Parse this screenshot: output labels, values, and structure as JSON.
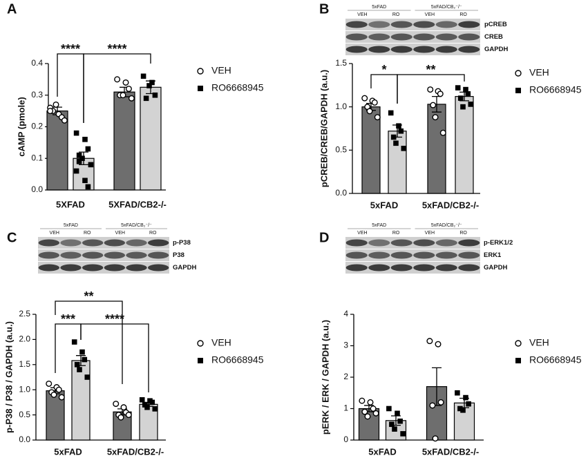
{
  "chart_data": [
    {
      "type": "bar",
      "panel": "A",
      "ylabel": "cAMP (pmole)",
      "categories": [
        "5XFAD",
        "5XFAD/CB2-/-"
      ],
      "ylim": [
        0,
        0.4
      ],
      "yticks": [
        {
          "value": 0,
          "label": "0.0"
        },
        0.1,
        0.2,
        0.3,
        0.4
      ],
      "series": [
        {
          "name": "VEH",
          "color": "#6e6e6e",
          "marker": "circle",
          "values": [
            0.25,
            0.31
          ],
          "errors": [
            0.012,
            0.015
          ],
          "points": [
            [
              0.26,
              0.24,
              0.23,
              0.25,
              0.27,
              0.22,
              0.25
            ],
            [
              0.35,
              0.34,
              0.32,
              0.3,
              0.3,
              0.29
            ]
          ]
        },
        {
          "name": "RO6668945",
          "color": "#d3d3d3",
          "marker": "square",
          "values": [
            0.1,
            0.325
          ],
          "errors": [
            0.02,
            0.02
          ],
          "points": [
            [
              0.18,
              0.16,
              0.13,
              0.11,
              0.1,
              0.08,
              0.06,
              0.03,
              0.01,
              0.09
            ],
            [
              0.36,
              0.34,
              0.3,
              0.29,
              0.33
            ]
          ]
        }
      ],
      "annotations": [
        "****",
        "****"
      ]
    },
    {
      "type": "bar",
      "panel": "B",
      "ylabel": "pCREB/CREB/GAPDH (a.u.)",
      "categories": [
        "5xFAD",
        "5xFAD/CB2-/-"
      ],
      "ylim": [
        0,
        1.5
      ],
      "yticks": [
        {
          "value": 0,
          "label": "0.0"
        },
        0.5,
        {
          "value": 1,
          "label": "1.0"
        },
        1.5
      ],
      "blot": {
        "groups": [
          "5xFAD",
          "5xFAD/CB₂⁻/⁻"
        ],
        "lanes": [
          "VEH",
          "RO",
          "VEH",
          "RO"
        ],
        "bands": [
          "pCREB",
          "CREB",
          "GAPDH"
        ]
      },
      "series": [
        {
          "name": "VEH",
          "color": "#6e6e6e",
          "marker": "circle",
          "values": [
            1.0,
            1.03
          ],
          "errors": [
            0.04,
            0.09
          ],
          "points": [
            [
              1.1,
              1.07,
              1.05,
              1.0,
              0.95,
              0.88
            ],
            [
              1.2,
              1.18,
              1.15,
              1.02,
              0.88,
              0.7
            ]
          ]
        },
        {
          "name": "RO6668945",
          "color": "#d3d3d3",
          "marker": "square",
          "values": [
            0.72,
            1.12
          ],
          "errors": [
            0.07,
            0.05
          ],
          "points": [
            [
              0.93,
              0.78,
              0.72,
              0.65,
              0.58,
              0.52
            ],
            [
              1.22,
              1.2,
              1.15,
              1.1,
              1.0,
              1.03
            ]
          ]
        }
      ],
      "annotations": [
        "*",
        "**"
      ]
    },
    {
      "type": "bar",
      "panel": "C",
      "ylabel": "p-P38 / P38 / GAPDH (a.u.)",
      "categories": [
        "5xFAD",
        "5xFAD/CB2-/-"
      ],
      "ylim": [
        0,
        2.5
      ],
      "yticks": [
        {
          "value": 0,
          "label": "0.0"
        },
        0.5,
        {
          "value": 1,
          "label": "1.0"
        },
        1.5,
        {
          "value": 2,
          "label": "2.0"
        },
        2.5
      ],
      "blot": {
        "groups": [
          "5xFAD",
          "5xFAD/CB₂⁻/⁻"
        ],
        "lanes": [
          "VEH",
          "RO",
          "VEH",
          "RO"
        ],
        "bands": [
          "p-P38",
          "P38",
          "GAPDH"
        ]
      },
      "series": [
        {
          "name": "VEH",
          "color": "#6e6e6e",
          "marker": "circle",
          "values": [
            0.98,
            0.56
          ],
          "errors": [
            0.06,
            0.06
          ],
          "points": [
            [
              1.12,
              1.05,
              1.0,
              0.95,
              0.9,
              0.85
            ],
            [
              0.72,
              0.65,
              0.55,
              0.5,
              0.45,
              0.5
            ]
          ]
        },
        {
          "name": "RO6668945",
          "color": "#d3d3d3",
          "marker": "square",
          "values": [
            1.58,
            0.71
          ],
          "errors": [
            0.1,
            0.04
          ],
          "points": [
            [
              1.95,
              1.75,
              1.6,
              1.5,
              1.4,
              1.25
            ],
            [
              0.8,
              0.78,
              0.75,
              0.7,
              0.65,
              0.62
            ]
          ]
        }
      ],
      "annotations": [
        "**",
        "***",
        "****"
      ]
    },
    {
      "type": "bar",
      "panel": "D",
      "ylabel": "pERK / ERK / GAPDH (a.u.)",
      "categories": [
        "5xFAD",
        "5xFAD/CB2-/-"
      ],
      "ylim": [
        0,
        4
      ],
      "yticks": [
        0,
        1,
        2,
        3,
        4
      ],
      "blot": {
        "groups": [
          "5xFAD",
          "5xFAD/CB₂⁻/⁻"
        ],
        "lanes": [
          "VEH",
          "RO",
          "VEH",
          "RO"
        ],
        "bands": [
          "p-ERK1/2",
          "ERK1",
          "GAPDH"
        ]
      },
      "series": [
        {
          "name": "VEH",
          "color": "#6e6e6e",
          "marker": "circle",
          "values": [
            1.0,
            1.7
          ],
          "errors": [
            0.1,
            0.6
          ],
          "points": [
            [
              1.25,
              1.2,
              1.0,
              0.9,
              0.75,
              0.85
            ],
            [
              3.15,
              3.05,
              1.2,
              1.1,
              0.05
            ]
          ]
        },
        {
          "name": "RO6668945",
          "color": "#d3d3d3",
          "marker": "square",
          "values": [
            0.62,
            1.18
          ],
          "errors": [
            0.15,
            0.15
          ],
          "points": [
            [
              1.0,
              0.85,
              0.6,
              0.5,
              0.35,
              0.2
            ],
            [
              1.5,
              1.35,
              1.15,
              1.0,
              0.95
            ]
          ]
        }
      ]
    }
  ]
}
